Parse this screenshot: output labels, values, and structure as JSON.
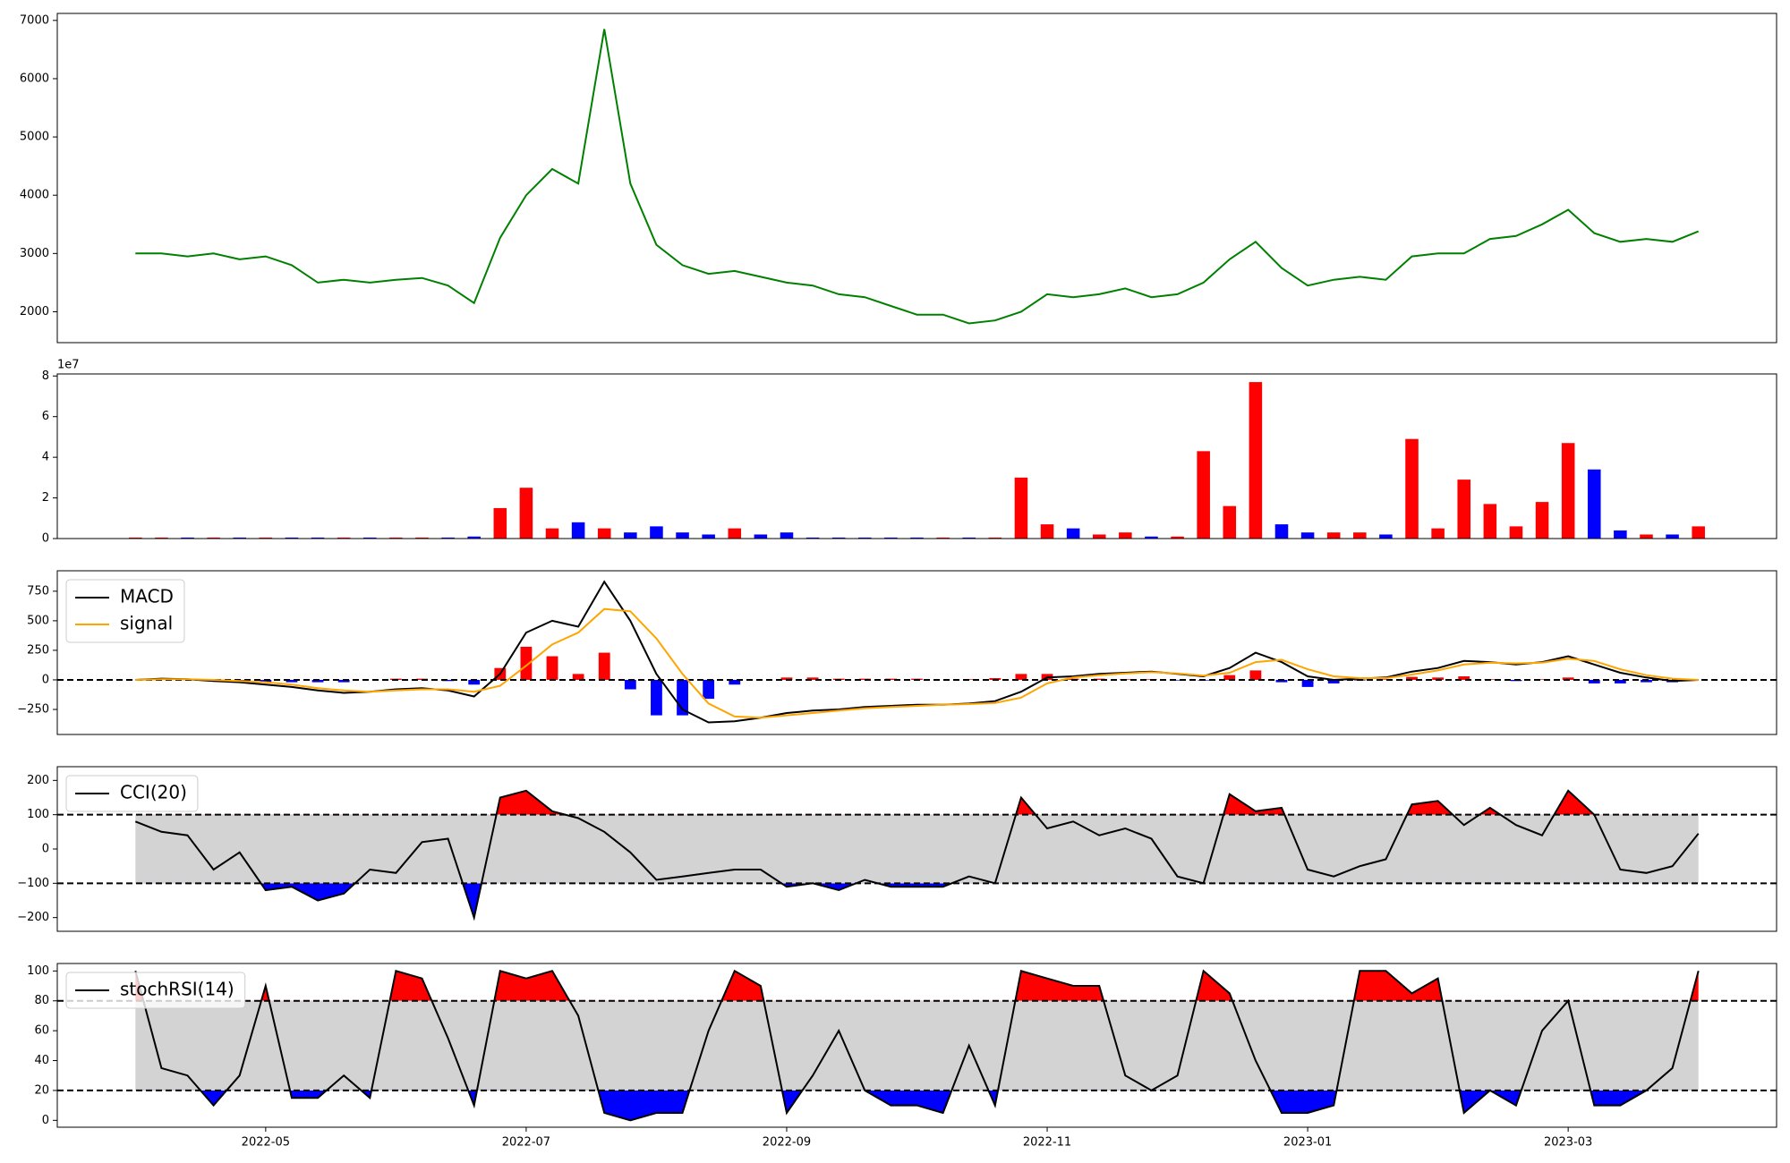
{
  "chart_data": [
    {
      "type": "line",
      "ylim": [
        1470,
        7120
      ],
      "yticks": [
        2000,
        3000,
        4000,
        5000,
        6000,
        7000
      ],
      "series": [
        {
          "color": "green",
          "values": [
            3000,
            3000,
            2950,
            3000,
            2900,
            2950,
            2800,
            2500,
            2550,
            2500,
            2550,
            2580,
            2450,
            2150,
            3270,
            4000,
            4450,
            4200,
            6850,
            4200,
            3150,
            2800,
            2650,
            2700,
            2600,
            2500,
            2450,
            2300,
            2250,
            2100,
            1950,
            1950,
            1800,
            1850,
            2000,
            2300,
            2250,
            2300,
            2400,
            2250,
            2300,
            2500,
            2900,
            3200,
            2750,
            2450,
            2550,
            2600,
            2550,
            2950,
            3000,
            3000,
            3250,
            3300,
            3500,
            3750,
            3350,
            3200,
            3250,
            3200,
            3380
          ]
        }
      ]
    },
    {
      "type": "bar",
      "ylim": [
        0,
        8.1
      ],
      "yticks": [
        0,
        2,
        4,
        6,
        8
      ],
      "y_offset_label": "1e7",
      "up_color": "red",
      "down_color": "blue",
      "values": [
        0.05,
        0.05,
        0.05,
        0.05,
        0.05,
        0.05,
        0.05,
        0.05,
        0.05,
        0.05,
        0.05,
        0.05,
        0.05,
        0.1,
        1.5,
        2.5,
        0.5,
        0.8,
        0.5,
        0.3,
        0.6,
        0.3,
        0.2,
        0.5,
        0.2,
        0.3,
        0.05,
        0.05,
        0.05,
        0.05,
        0.05,
        0.05,
        0.05,
        0.05,
        3.0,
        0.7,
        0.5,
        0.2,
        0.3,
        0.1,
        0.1,
        4.3,
        1.6,
        7.7,
        0.7,
        0.3,
        0.3,
        0.3,
        0.2,
        4.9,
        0.5,
        2.9,
        1.7,
        0.6,
        1.8,
        4.7,
        3.4,
        0.4,
        0.2,
        0.2,
        0.6
      ]
    },
    {
      "type": "macd",
      "ylim": [
        -462,
        923
      ],
      "yticks": [
        {
          "value": -250,
          "label": "−250"
        },
        0,
        250,
        500,
        750
      ],
      "hlines": [
        0
      ],
      "legend": "upper left",
      "series": [
        {
          "name": "MACD",
          "color": "black",
          "values": [
            0,
            10,
            5,
            -10,
            -20,
            -40,
            -60,
            -90,
            -110,
            -100,
            -80,
            -70,
            -90,
            -140,
            50,
            400,
            500,
            450,
            830,
            500,
            50,
            -250,
            -360,
            -350,
            -320,
            -280,
            -260,
            -250,
            -230,
            -220,
            -210,
            -210,
            -200,
            -180,
            -100,
            20,
            30,
            50,
            60,
            70,
            50,
            30,
            100,
            230,
            150,
            30,
            0,
            10,
            20,
            70,
            100,
            160,
            150,
            130,
            150,
            200,
            130,
            60,
            20,
            -10,
            0
          ]
        },
        {
          "name": "signal",
          "color": "orange",
          "values": [
            0,
            5,
            5,
            0,
            -10,
            -20,
            -40,
            -70,
            -90,
            -100,
            -90,
            -80,
            -80,
            -100,
            -50,
            120,
            300,
            400,
            600,
            580,
            350,
            50,
            -200,
            -310,
            -320,
            -300,
            -280,
            -260,
            -240,
            -230,
            -220,
            -210,
            -205,
            -195,
            -150,
            -30,
            20,
            40,
            55,
            65,
            55,
            35,
            60,
            150,
            170,
            90,
            30,
            15,
            15,
            45,
            80,
            130,
            145,
            140,
            145,
            180,
            160,
            90,
            40,
            10,
            0
          ]
        }
      ],
      "histogram": {
        "up_color": "red",
        "down_color": "blue",
        "values": [
          0,
          5,
          0,
          -10,
          -10,
          -20,
          -20,
          -20,
          -20,
          0,
          10,
          10,
          -10,
          -40,
          100,
          280,
          200,
          50,
          230,
          -80,
          -300,
          -300,
          -160,
          -40,
          0,
          20,
          20,
          10,
          10,
          10,
          10,
          0,
          5,
          15,
          50,
          50,
          10,
          10,
          5,
          5,
          -5,
          -5,
          40,
          80,
          -20,
          -60,
          -30,
          -5,
          5,
          25,
          20,
          30,
          5,
          -10,
          5,
          20,
          -30,
          -30,
          -20,
          -20,
          0
        ]
      }
    },
    {
      "type": "oscillator",
      "ylim": [
        -240,
        240
      ],
      "yticks": [
        {
          "value": -200,
          "label": "−200"
        },
        {
          "value": -100,
          "label": "−100"
        },
        0,
        100,
        200
      ],
      "thresholds": [
        100,
        -100
      ],
      "band_color": "#d3d3d3",
      "above_color": "red",
      "below_color": "blue",
      "legend": "upper left",
      "series": [
        {
          "name": "CCI(20)",
          "color": "black",
          "values": [
            80,
            50,
            40,
            -60,
            -10,
            -120,
            -110,
            -150,
            -130,
            -60,
            -70,
            20,
            30,
            -200,
            150,
            170,
            110,
            90,
            50,
            -10,
            -90,
            -80,
            -70,
            -60,
            -60,
            -110,
            -100,
            -120,
            -90,
            -110,
            -110,
            -110,
            -80,
            -100,
            150,
            60,
            80,
            40,
            60,
            30,
            -80,
            -100,
            160,
            110,
            120,
            -60,
            -80,
            -50,
            -30,
            130,
            140,
            70,
            120,
            70,
            40,
            170,
            100,
            -60,
            -70,
            -50,
            45
          ]
        }
      ]
    },
    {
      "type": "oscillator",
      "ylim": [
        -4.6,
        105
      ],
      "yticks": [
        0,
        20,
        40,
        60,
        80,
        100
      ],
      "thresholds": [
        80,
        20
      ],
      "band_color": "#d3d3d3",
      "above_color": "red",
      "below_color": "blue",
      "legend": "upper left",
      "series": [
        {
          "name": "stochRSI(14)",
          "color": "black",
          "values": [
            100,
            35,
            30,
            10,
            30,
            90,
            15,
            15,
            30,
            15,
            100,
            95,
            55,
            10,
            100,
            95,
            100,
            70,
            5,
            0,
            5,
            5,
            60,
            100,
            90,
            5,
            30,
            60,
            20,
            10,
            10,
            5,
            50,
            10,
            100,
            95,
            90,
            90,
            30,
            20,
            30,
            100,
            85,
            40,
            5,
            5,
            10,
            100,
            100,
            85,
            95,
            5,
            20,
            10,
            60,
            80,
            10,
            10,
            20,
            35,
            100
          ]
        }
      ],
      "categories": [
        null,
        null,
        null,
        null,
        null,
        "2022-05",
        null,
        null,
        null,
        null,
        null,
        null,
        null,
        null,
        null,
        "2022-07",
        null,
        null,
        null,
        null,
        null,
        null,
        null,
        null,
        null,
        "2022-09",
        null,
        null,
        null,
        null,
        null,
        null,
        null,
        null,
        null,
        "2022-11",
        null,
        null,
        null,
        null,
        null,
        null,
        null,
        null,
        null,
        "2023-01",
        null,
        null,
        null,
        null,
        null,
        null,
        null,
        null,
        null,
        "2023-03",
        null,
        null,
        null,
        null,
        null
      ]
    }
  ]
}
